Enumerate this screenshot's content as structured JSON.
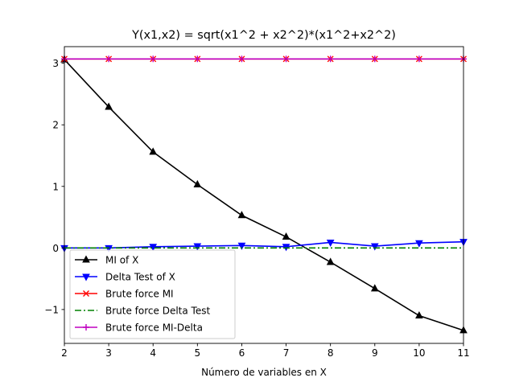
{
  "chart_data": {
    "type": "line",
    "title": "Y(x1,x2) = sqrt(x1^2 + x2^2)*(x1^2+x2^2)",
    "xlabel": "Número de variables en X",
    "ylabel": "",
    "x": [
      2,
      3,
      4,
      5,
      6,
      7,
      8,
      9,
      10,
      11
    ],
    "xlim": [
      2,
      11
    ],
    "ylim": [
      -1.55,
      3.27
    ],
    "x_ticks": [
      "2",
      "3",
      "4",
      "5",
      "6",
      "7",
      "8",
      "9",
      "10",
      "11"
    ],
    "y_ticks": [
      {
        "value": -1,
        "label": "−1"
      },
      {
        "value": 0,
        "label": "0"
      },
      {
        "value": 1,
        "label": "1"
      },
      {
        "value": 2,
        "label": "2"
      },
      {
        "value": 3,
        "label": "3"
      }
    ],
    "grid": false,
    "legend_position": "lower-left",
    "series": [
      {
        "name": "MI of X",
        "color": "#000000",
        "marker": "triangle-up",
        "dash": "",
        "values": [
          3.06,
          2.29,
          1.56,
          1.03,
          0.53,
          0.18,
          -0.23,
          -0.66,
          -1.1,
          -1.34
        ]
      },
      {
        "name": "Delta Test of X",
        "color": "#0000ff",
        "marker": "triangle-down",
        "dash": "",
        "values": [
          0.0,
          0.0,
          0.02,
          0.03,
          0.04,
          0.02,
          0.09,
          0.03,
          0.08,
          0.1
        ]
      },
      {
        "name": "Brute force MI",
        "color": "#ff0000",
        "marker": "x",
        "dash": "",
        "values": [
          3.07,
          3.07,
          3.07,
          3.07,
          3.07,
          3.07,
          3.07,
          3.07,
          3.07,
          3.07
        ]
      },
      {
        "name": "Brute force Delta Test",
        "color": "#008000",
        "marker": "none",
        "dash": "8,3,2,3",
        "values": [
          0.0,
          0.0,
          0.0,
          0.0,
          0.0,
          0.0,
          0.0,
          0.0,
          0.0,
          0.0
        ]
      },
      {
        "name": "Brute force MI-Delta",
        "color": "#bf00bf",
        "marker": "plus",
        "dash": "",
        "values": [
          3.07,
          3.07,
          3.07,
          3.07,
          3.07,
          3.07,
          3.07,
          3.07,
          3.07,
          3.07
        ]
      }
    ]
  }
}
